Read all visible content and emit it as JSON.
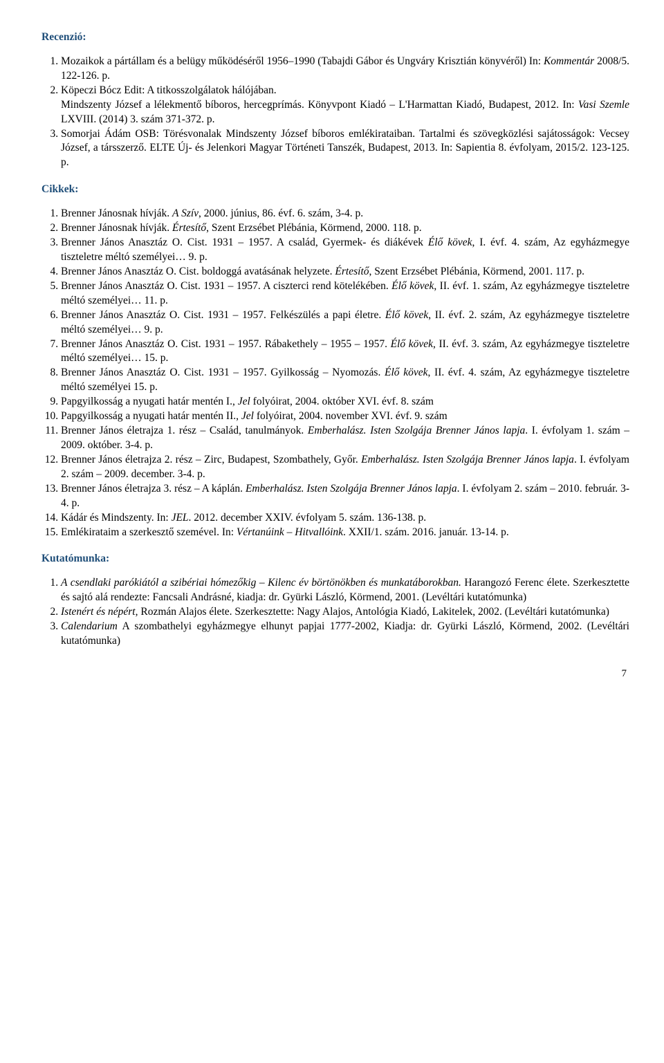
{
  "headings": {
    "recenzio": "Recenzió:",
    "cikkek": "Cikkek:",
    "kutatomunka": "Kutatómunka:"
  },
  "recenzio": {
    "item1_pre": "Mozaikok a pártállam és a belügy működéséről 1956–1990 (Tabajdi Gábor és Ungváry Krisztián könyvéről) In: ",
    "item1_ital": "Kommentár",
    "item1_post": " 2008/5. 122-126. p.",
    "item2": "Köpeczi Bócz Edit: A titkosszolgálatok hálójában.",
    "para2_pre": "Mindszenty József a lélekmentő bíboros, hercegprímás. Könyvpont Kiadó – L'Harmattan Kiadó, Budapest, 2012. In: ",
    "para2_ital": "Vasi Szemle",
    "para2_post": " LXVIII. (2014) 3. szám 371-372. p.",
    "item3": "Somorjai Ádám OSB: Törésvonalak Mindszenty József bíboros emlékirataiban. Tartalmi és szövegközlési sajátosságok: Vecsey József, a társszerző. ELTE Új- és Jelenkori Magyar Történeti Tanszék, Budapest, 2013. In: Sapientia 8. évfolyam, 2015/2. 123-125. p."
  },
  "cikkek": {
    "i1a": "Brenner Jánosnak hívják. ",
    "i1b": "A Szív",
    "i1c": ", 2000. június, 86. évf. 6. szám, 3-4. p.",
    "i2a": "Brenner Jánosnak hívják. ",
    "i2b": "Értesítő",
    "i2c": ", Szent Erzsébet Plébánia, Körmend, 2000. 118. p.",
    "i3a": "Brenner János Anasztáz O. Cist. 1931 – 1957. A család, Gyermek- és diákévek ",
    "i3b": "Élő kövek",
    "i3c": ", I. évf. 4. szám, Az egyházmegye tiszteletre méltó személyei… 9. p.",
    "i4a": "Brenner János Anasztáz O. Cist. boldoggá avatásának helyzete. ",
    "i4b": "Értesítő",
    "i4c": ", Szent Erzsébet Plébánia, Körmend, 2001. 117. p.",
    "i5a": "Brenner János Anasztáz O. Cist. 1931 – 1957. A ciszterci rend kötelékében. ",
    "i5b": "Élő kövek",
    "i5c": ", II. évf. 1. szám, Az egyházmegye tiszteletre méltó személyei… 11. p.",
    "i6a": "Brenner János Anasztáz O. Cist. 1931 – 1957. Felkészülés a papi életre. ",
    "i6b": "Élő kövek",
    "i6c": ", II. évf. 2. szám, Az egyházmegye tiszteletre méltó személyei… 9. p.",
    "i7a": "Brenner János Anasztáz O. Cist. 1931 – 1957. Rábakethely – 1955 – 1957. ",
    "i7b": "Élő kövek",
    "i7c": ", II. évf. 3. szám, Az egyházmegye tiszteletre méltó személyei… 15. p.",
    "i8a": "Brenner János Anasztáz O. Cist. 1931 – 1957. Gyilkosság – Nyomozás. ",
    "i8b": "Élő kövek",
    "i8c": ", II. évf. 4. szám, Az egyházmegye tiszteletre méltó személyei 15. p.",
    "i9a": "Papgyilkosság a nyugati határ mentén I., ",
    "i9b": "Jel",
    "i9c": " folyóirat, 2004. október XVI. évf. 8. szám",
    "i10a": "Papgyilkosság a nyugati határ mentén II., ",
    "i10b": "Jel",
    "i10c": " folyóirat, 2004. november XVI. évf. 9. szám",
    "i11a": "Brenner János életrajza 1. rész – Család, tanulmányok. ",
    "i11b": "Emberhalász. Isten Szolgája Brenner János lapja",
    "i11c": ". I. évfolyam 1. szám – 2009. október. 3-4. p.",
    "i12a": "Brenner János életrajza 2. rész – Zirc, Budapest, Szombathely, Győr. ",
    "i12b": "Emberhalász. Isten Szolgája Brenner János lapja",
    "i12c": ". I. évfolyam 2. szám – 2009. december. 3-4. p.",
    "i13a": "Brenner János életrajza 3. rész – A káplán. ",
    "i13b": "Emberhalász. Isten Szolgája Brenner János lapja",
    "i13c": ". I. évfolyam 2. szám – 2010. február. 3-4. p.",
    "i14a": "Kádár és Mindszenty. In: ",
    "i14b": "JEL",
    "i14c": ". 2012. december XXIV. évfolyam 5. szám. 136-138. p.",
    "i15a": "Emlékirataim a szerkesztő szemével. In: ",
    "i15b": "Vértanúink – Hitvallóink",
    "i15c": ". XXII/1. szám. 2016. január. 13-14. p."
  },
  "kutatomunka": {
    "i1a": "A csendlaki parókiától a szibériai hómezőkig – Kilenc év börtönökben és munkatáborokban.",
    "i1b": " Harangozó Ferenc élete. Szerkesztette és sajtó alá rendezte: Fancsali Andrásné, kiadja: dr. Gyürki László, Körmend, 2001. (Levéltári kutatómunka)",
    "i2a": "Istenért és népért",
    "i2b": ", Rozmán Alajos élete. Szerkesztette: Nagy Alajos, Antológia Kiadó, Lakitelek, 2002. (Levéltári kutatómunka)",
    "i3a": "Calendarium",
    "i3b": " A szombathelyi egyházmegye elhunyt papjai 1777-2002, Kiadja: dr. Gyürki László, Körmend, 2002. (Levéltári kutatómunka)"
  },
  "page_number": "7"
}
